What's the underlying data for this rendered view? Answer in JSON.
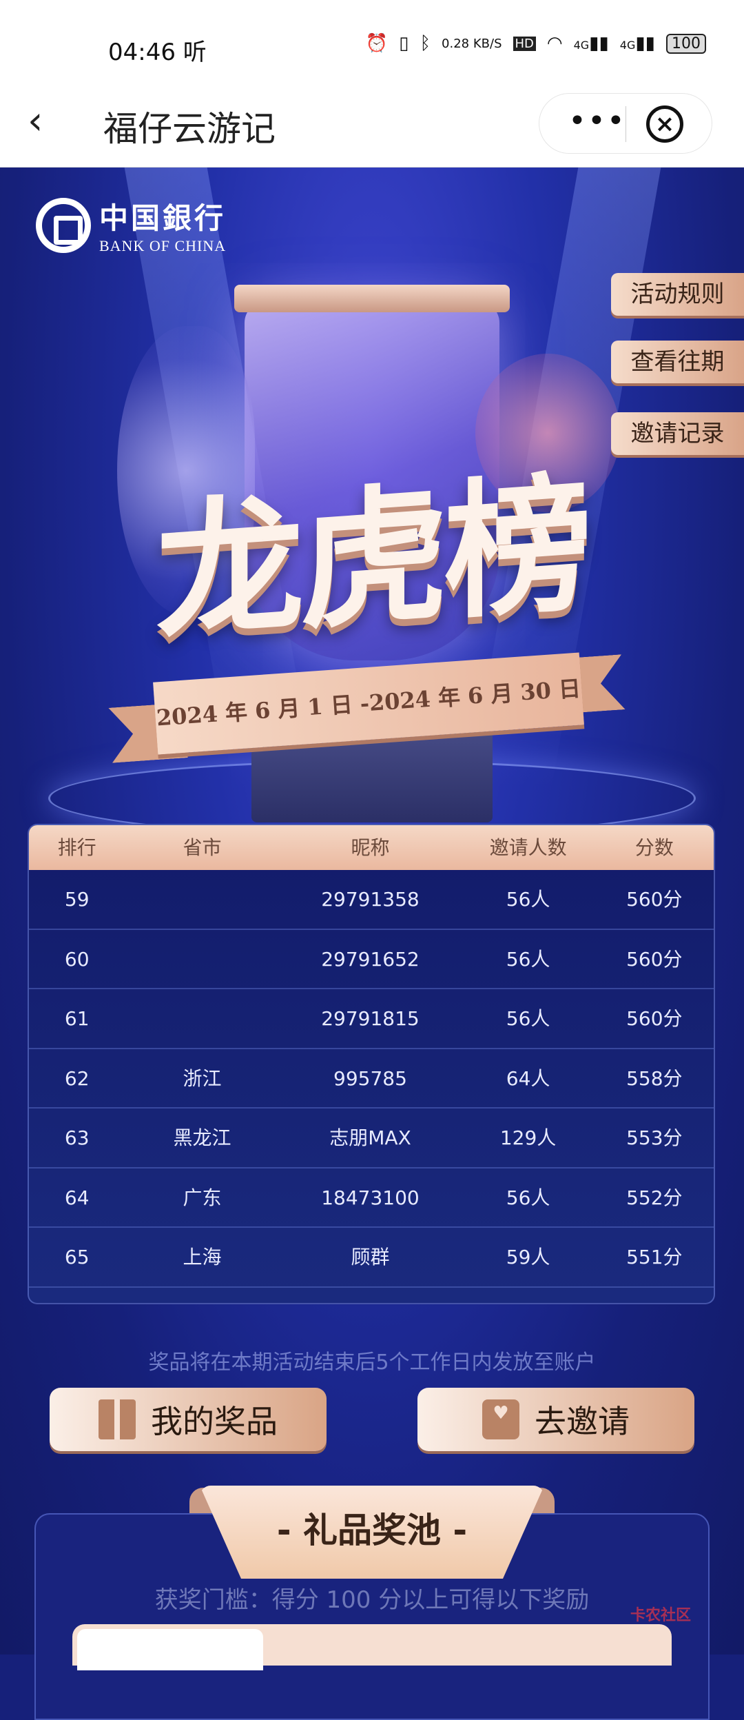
{
  "status_bar": {
    "time": "04:46",
    "extra": "听",
    "net_speed": "0.28 KB/S",
    "hd": "HD",
    "signal1": "4G",
    "signal2": "4G",
    "battery": "100"
  },
  "nav": {
    "title": "福仔云游记",
    "more": "•••",
    "close": "×"
  },
  "banner": {
    "logo_cn": "中国銀行",
    "logo_en": "BANK OF CHINA",
    "title": "龙虎榜",
    "date_range": "2024 年 6 月 1 日 -2024 年 6 月 30 日",
    "side_buttons": [
      "活动规则",
      "查看往期",
      "邀请记录"
    ]
  },
  "table": {
    "headers": [
      "排行",
      "省市",
      "昵称",
      "邀请人数",
      "分数"
    ],
    "rows": [
      [
        "59",
        "",
        "29791358",
        "56人",
        "560分"
      ],
      [
        "60",
        "",
        "29791652",
        "56人",
        "560分"
      ],
      [
        "61",
        "",
        "29791815",
        "56人",
        "560分"
      ],
      [
        "62",
        "浙江",
        "995785",
        "64人",
        "558分"
      ],
      [
        "63",
        "黑龙江",
        "志朋MAX",
        "129人",
        "553分"
      ],
      [
        "64",
        "广东",
        "18473100",
        "56人",
        "552分"
      ],
      [
        "65",
        "上海",
        "顾群",
        "59人",
        "551分"
      ]
    ]
  },
  "notice": "奖品将在本期活动结束后5个工作日内发放至账户",
  "actions": {
    "my_prizes": "我的奖品",
    "invite": "去邀请"
  },
  "pool": {
    "title": "- 礼品奖池 -",
    "subtitle": "获奖门槛：得分 100 分以上可得以下奖励"
  },
  "watermark": "卡农社区",
  "colors": {
    "accent": "#e8b59c",
    "background": "#16207a"
  }
}
